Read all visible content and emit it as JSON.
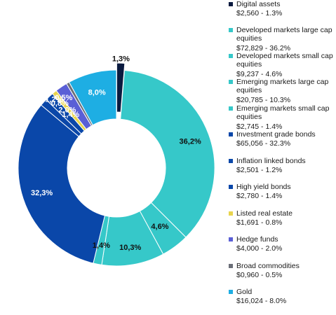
{
  "chart_data": {
    "type": "pie",
    "style": "donut",
    "series": [
      {
        "name": "Digital assets",
        "value_text": "$2,560 - 1.3%",
        "amount": 2560,
        "percent": 1.3,
        "label": "1,3%",
        "color": "#0a1a3f",
        "exploded": true
      },
      {
        "name": "Developed markets large cap equities",
        "value_text": "$72,829 - 36.2%",
        "amount": 72829,
        "percent": 36.2,
        "label": "36,2%",
        "color": "#36c8c9"
      },
      {
        "name": "Developed markets small cap equities",
        "value_text": "$9,237 - 4.6%",
        "amount": 9237,
        "percent": 4.6,
        "label": "4,6%",
        "color": "#36c8c9"
      },
      {
        "name": "Emerging markets large cap equities",
        "value_text": "$20,785 - 10.3%",
        "amount": 20785,
        "percent": 10.3,
        "label": "10,3%",
        "color": "#36c8c9"
      },
      {
        "name": "Emerging markets small cap equities",
        "value_text": "$2,745 - 1.4%",
        "amount": 2745,
        "percent": 1.4,
        "label": "1,4%",
        "color": "#36c8c9"
      },
      {
        "name": "Investment grade bonds",
        "value_text": "$65,056 - 32.3%",
        "amount": 65056,
        "percent": 32.3,
        "label": "32,3%",
        "color": "#0a47a9"
      },
      {
        "name": "Inflation linked bonds",
        "value_text": "$2,501 - 1.2%",
        "amount": 2501,
        "percent": 1.2,
        "label": "1,2%",
        "color": "#0a47a9"
      },
      {
        "name": "High yield bonds",
        "value_text": "$2,780 - 1.4%",
        "amount": 2780,
        "percent": 1.4,
        "label": "1,4%",
        "color": "#0a47a9"
      },
      {
        "name": "Listed real estate",
        "value_text": "$1,691 - 0.8%",
        "amount": 1691,
        "percent": 0.8,
        "label": "0,8%",
        "color": "#e8d44d"
      },
      {
        "name": "Hedge funds",
        "value_text": "$4,000 - 2.0%",
        "amount": 4000,
        "percent": 2.0,
        "label": "2,0%",
        "color": "#5a5fd6"
      },
      {
        "name": "Broad commodities",
        "value_text": "$0,960 - 0.5%",
        "amount": 960,
        "percent": 0.5,
        "label": "0,5%",
        "color": "#6b6f78"
      },
      {
        "name": "Gold",
        "value_text": "$16,024 - 8.0%",
        "amount": 16024,
        "percent": 8.0,
        "label": "8,0%",
        "color": "#1eaee3"
      }
    ]
  }
}
